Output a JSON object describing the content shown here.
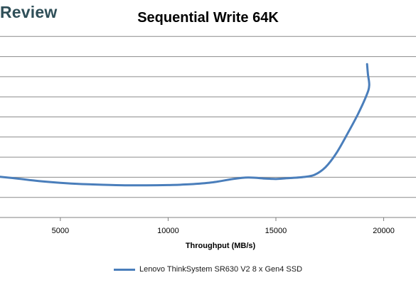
{
  "watermark": "Review",
  "chart_data": {
    "type": "line",
    "title": "Sequential Write 64K",
    "xlabel": "Throughput (MB/s)",
    "ylabel": "",
    "xlim": [
      2200,
      21500
    ],
    "ylim": [
      0,
      80
    ],
    "x_ticks": [
      5000,
      10000,
      15000,
      20000
    ],
    "x_tick_labels": [
      "5000",
      "10000",
      "15000",
      "20000"
    ],
    "y_gridlines": [
      8,
      16,
      24,
      32,
      40,
      48,
      56,
      64,
      72
    ],
    "grid": true,
    "legend": "bottom",
    "series": [
      {
        "name": "Lenovo ThinkSystem SR630 V2 8 x Gen4 SSD",
        "color": "#4a7ebb",
        "points": [
          [
            2200,
            16.2
          ],
          [
            3000,
            15.5
          ],
          [
            4000,
            14.5
          ],
          [
            5000,
            13.8
          ],
          [
            6000,
            13.3
          ],
          [
            7000,
            13.0
          ],
          [
            8000,
            12.8
          ],
          [
            9000,
            12.8
          ],
          [
            10000,
            12.9
          ],
          [
            11000,
            13.2
          ],
          [
            12000,
            13.9
          ],
          [
            13000,
            15.3
          ],
          [
            13700,
            15.9
          ],
          [
            14500,
            15.5
          ],
          [
            15000,
            15.3
          ],
          [
            15500,
            15.6
          ],
          [
            16300,
            16.1
          ],
          [
            16800,
            17.0
          ],
          [
            17300,
            20.0
          ],
          [
            17800,
            25.5
          ],
          [
            18300,
            33.0
          ],
          [
            18800,
            41.0
          ],
          [
            19200,
            48.5
          ],
          [
            19330,
            52.5
          ],
          [
            19270,
            57.0
          ],
          [
            19230,
            61.0
          ]
        ]
      }
    ]
  }
}
